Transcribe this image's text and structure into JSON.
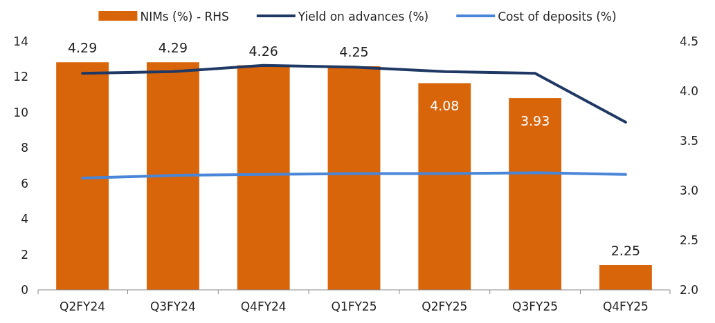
{
  "chart_data": {
    "type": "bar",
    "categories": [
      "Q2FY24",
      "Q3FY24",
      "Q4FY24",
      "Q1FY25",
      "Q2FY25",
      "Q3FY25",
      "Q4FY25"
    ],
    "series": [
      {
        "name": "NIMs (%) - RHS",
        "axis": "y2",
        "color": "#d9650b",
        "values": [
          4.29,
          4.29,
          4.26,
          4.25,
          4.08,
          3.93,
          2.25
        ],
        "value_labels": [
          "4.29",
          "4.29",
          "4.26",
          "4.25",
          "4.08",
          "3.93",
          "2.25"
        ]
      },
      {
        "name": "Yield on advances (%)",
        "type": "line",
        "color": "#1f3864",
        "values": [
          12.2,
          12.3,
          12.65,
          12.55,
          12.3,
          12.2,
          9.45
        ]
      },
      {
        "name": "Cost of deposits (%)",
        "type": "line",
        "color": "#4a86d8",
        "values": [
          6.3,
          6.45,
          6.5,
          6.55,
          6.55,
          6.6,
          6.5
        ]
      }
    ],
    "ylim": [
      0,
      14
    ],
    "yticks": [
      0,
      2,
      4,
      6,
      8,
      10,
      12,
      14
    ],
    "y2lim": [
      2.0,
      4.5
    ],
    "y2ticks": [
      {
        "value": 2.0,
        "label": "2.0"
      },
      {
        "value": 2.5,
        "label": "2.5"
      },
      {
        "value": 3.0,
        "label": "3.0"
      },
      {
        "value": 3.5,
        "label": "3.5"
      },
      {
        "value": 4.0,
        "label": "4.0"
      },
      {
        "value": 4.5,
        "label": "4.5"
      }
    ],
    "legend": "top",
    "grid": false
  }
}
